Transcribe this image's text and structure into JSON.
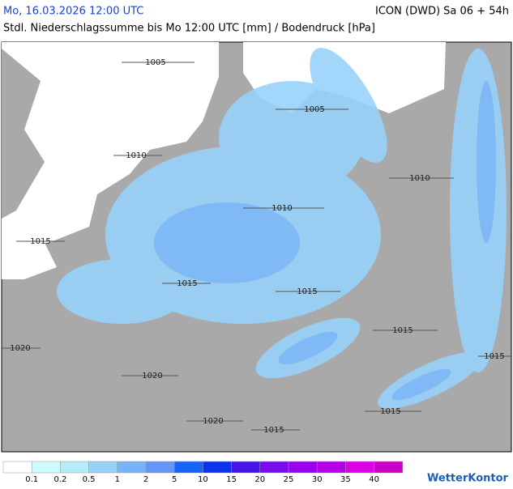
{
  "header": {
    "valid_time": "Mo, 16.03.2026 12:00 UTC",
    "model_run": "ICON (DWD) Sa 06 + 54h",
    "subtitle": "Stdl. Niederschlagssumme bis Mo 12:00 UTC [mm] / Bodendruck [hPa]"
  },
  "isobars": [
    "1005",
    "1005",
    "1010",
    "1010",
    "1010",
    "1015",
    "1015",
    "1015",
    "1015",
    "1015",
    "1020",
    "1020",
    "1020",
    "1015",
    "1015"
  ],
  "legend": {
    "colors": [
      "#ffffff",
      "#cdfcfc",
      "#b4ecfa",
      "#98d2fa",
      "#78b4f8",
      "#6496f5",
      "#1464f5",
      "#0a32f0",
      "#4614e6",
      "#7a0af0",
      "#9a00f0",
      "#b400e6",
      "#dc00e6",
      "#c800c8"
    ],
    "labels": [
      0.1,
      0.2,
      0.5,
      1,
      2,
      5,
      10,
      15,
      20,
      25,
      30,
      35,
      40
    ]
  },
  "brand": "WetterKontor"
}
